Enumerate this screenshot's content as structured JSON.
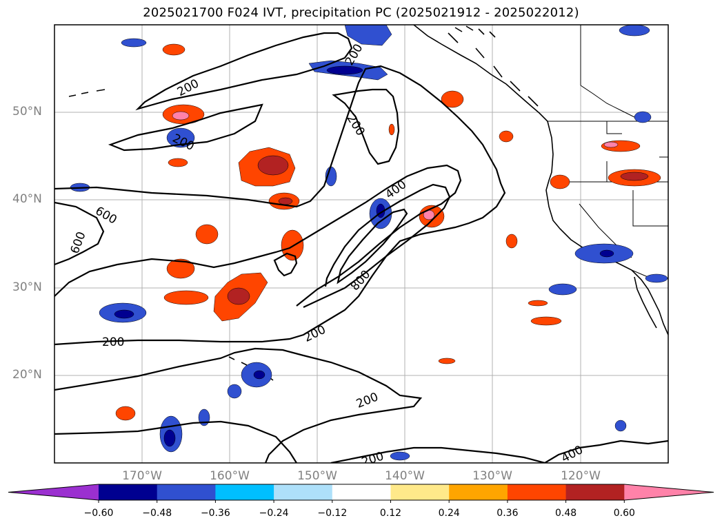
{
  "title": "2025021700 F024 IVT, precipitation PC (2025021912 - 2025022012)",
  "map": {
    "type": "filled contour map with contour lines",
    "projection": "Plate Carree",
    "lon_range": [
      "180°",
      "110°W"
    ],
    "lat_range": [
      "10°N",
      "60°N"
    ],
    "gridlines": true,
    "lat_labels": [
      "50°N",
      "40°N",
      "30°N",
      "20°N"
    ],
    "lon_labels": [
      "170°W",
      "160°W",
      "150°W",
      "140°W",
      "130°W",
      "120°W"
    ],
    "contour_labels": [
      "200",
      "200",
      "200",
      "200",
      "200",
      "200",
      "200",
      "200",
      "400",
      "400",
      "600",
      "600",
      "800"
    ],
    "land_colour": "#ffffff",
    "coastline_colour": "#000000"
  },
  "colorbar": {
    "extend": "both",
    "tick_labels": [
      "−0.60",
      "−0.48",
      "−0.36",
      "−0.24",
      "−0.12",
      "0.12",
      "0.24",
      "0.36",
      "0.48",
      "0.60"
    ],
    "colors": [
      "#9b30d0",
      "#000090",
      "#3050d0",
      "#00bfff",
      "#aee0fa",
      "#ffffff",
      "#ffe98a",
      "#ffa500",
      "#ff4500",
      "#b22222",
      "#ff82a9"
    ]
  },
  "colors": {
    "contour_line": "#000000",
    "grid": "#b0b0b0",
    "axis_label": "#808080"
  }
}
